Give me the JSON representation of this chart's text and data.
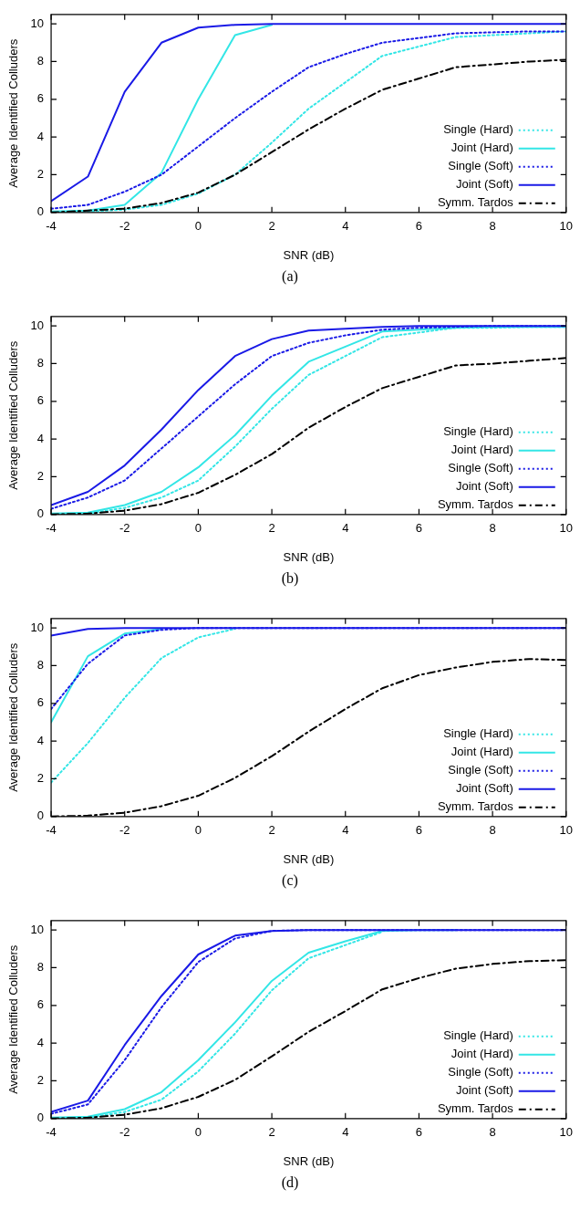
{
  "chart_data": [
    {
      "type": "line",
      "xlabel": "SNR (dB)",
      "ylabel": "Average Identified Colluders",
      "annotations": [
        "(a)"
      ],
      "x": [
        -4,
        -3,
        -2,
        -1,
        0,
        1,
        2,
        3,
        4,
        5,
        6,
        7,
        8,
        9,
        10
      ],
      "xlim": [
        -4,
        10
      ],
      "xticks": [
        -4,
        -2,
        0,
        2,
        4,
        6,
        8,
        10
      ],
      "ylim": [
        0,
        10.5
      ],
      "yticks": [
        0,
        2,
        4,
        6,
        8,
        10
      ],
      "legend": "bottom right",
      "series": [
        {
          "name": "Single (Hard)",
          "color": "#33e6e6",
          "line_style": "dotted",
          "values": [
            0,
            0.05,
            0.15,
            0.4,
            1.0,
            2.0,
            3.7,
            5.5,
            6.9,
            8.3,
            8.8,
            9.3,
            9.4,
            9.5,
            9.6
          ]
        },
        {
          "name": "Joint (Hard)",
          "color": "#33e6e6",
          "line_style": "solid",
          "values": [
            0.05,
            0.1,
            0.4,
            2.1,
            6.0,
            9.4,
            9.95,
            null,
            null,
            null,
            null,
            null,
            null,
            null,
            null
          ]
        },
        {
          "name": "Single (Soft)",
          "color": "#1a1ae6",
          "line_style": "dotted",
          "values": [
            0.2,
            0.4,
            1.1,
            2.0,
            3.5,
            5.0,
            6.4,
            7.7,
            8.4,
            9.0,
            9.25,
            9.5,
            9.55,
            9.6,
            9.6
          ]
        },
        {
          "name": "Joint (Soft)",
          "color": "#1a1ae6",
          "line_style": "solid",
          "values": [
            0.6,
            1.9,
            6.4,
            9.0,
            9.8,
            9.95,
            10,
            10,
            10,
            10,
            10,
            10,
            10,
            10,
            10
          ]
        },
        {
          "name": "Symm. Tardos",
          "color": "#000000",
          "line_style": "dashdot",
          "values": [
            0,
            0.1,
            0.2,
            0.5,
            1.05,
            2.0,
            3.2,
            4.4,
            5.5,
            6.5,
            7.1,
            7.7,
            7.85,
            8.0,
            8.1
          ]
        }
      ]
    },
    {
      "type": "line",
      "xlabel": "SNR (dB)",
      "ylabel": "Average Identified Colluders",
      "annotations": [
        "(b)"
      ],
      "x": [
        -4,
        -3,
        -2,
        -1,
        0,
        1,
        2,
        3,
        4,
        5,
        6,
        7,
        8,
        9,
        10
      ],
      "xlim": [
        -4,
        10
      ],
      "xticks": [
        -4,
        -2,
        0,
        2,
        4,
        6,
        8,
        10
      ],
      "ylim": [
        0,
        10.5
      ],
      "yticks": [
        0,
        2,
        4,
        6,
        8,
        10
      ],
      "legend": "bottom right",
      "series": [
        {
          "name": "Single (Hard)",
          "color": "#33e6e6",
          "line_style": "dotted",
          "values": [
            0,
            0.05,
            0.35,
            0.9,
            1.8,
            3.6,
            5.6,
            7.4,
            8.4,
            9.4,
            9.65,
            9.9,
            9.9,
            9.95,
            9.95
          ]
        },
        {
          "name": "Joint (Hard)",
          "color": "#33e6e6",
          "line_style": "solid",
          "values": [
            0.05,
            0.1,
            0.5,
            1.2,
            2.5,
            4.2,
            6.3,
            8.1,
            8.9,
            9.7,
            9.8,
            9.9,
            9.95,
            9.95,
            9.95
          ]
        },
        {
          "name": "Single (Soft)",
          "color": "#1a1ae6",
          "line_style": "dotted",
          "values": [
            0.3,
            0.9,
            1.8,
            3.5,
            5.2,
            6.9,
            8.4,
            9.1,
            9.5,
            9.8,
            9.9,
            9.95,
            10,
            10,
            10
          ]
        },
        {
          "name": "Joint (Soft)",
          "color": "#1a1ae6",
          "line_style": "solid",
          "values": [
            0.5,
            1.2,
            2.6,
            4.5,
            6.6,
            8.4,
            9.3,
            9.75,
            9.85,
            9.95,
            10,
            10,
            10,
            10,
            10
          ]
        },
        {
          "name": "Symm. Tardos",
          "color": "#000000",
          "line_style": "dashdot",
          "values": [
            0,
            0.05,
            0.2,
            0.55,
            1.15,
            2.1,
            3.2,
            4.6,
            5.7,
            6.7,
            7.3,
            7.9,
            8.0,
            8.15,
            8.3
          ]
        }
      ]
    },
    {
      "type": "line",
      "xlabel": "SNR (dB)",
      "ylabel": "Average Identified Colluders",
      "annotations": [
        "(c)"
      ],
      "x": [
        -4,
        -3,
        -2,
        -1,
        0,
        1,
        2,
        3,
        4,
        5,
        6,
        7,
        8,
        9,
        10
      ],
      "xlim": [
        -4,
        10
      ],
      "xticks": [
        -4,
        -2,
        0,
        2,
        4,
        6,
        8,
        10
      ],
      "ylim": [
        0,
        10.5
      ],
      "yticks": [
        0,
        2,
        4,
        6,
        8,
        10
      ],
      "legend": "bottom right",
      "series": [
        {
          "name": "Single (Hard)",
          "color": "#33e6e6",
          "line_style": "dotted",
          "values": [
            1.8,
            3.9,
            6.3,
            8.4,
            9.5,
            9.95,
            null,
            null,
            null,
            null,
            null,
            null,
            null,
            null,
            null
          ]
        },
        {
          "name": "Joint (Hard)",
          "color": "#33e6e6",
          "line_style": "solid",
          "values": [
            5.0,
            8.5,
            9.7,
            9.95,
            null,
            null,
            null,
            null,
            null,
            null,
            null,
            null,
            null,
            null,
            null
          ]
        },
        {
          "name": "Single (Soft)",
          "color": "#1a1ae6",
          "line_style": "dotted",
          "values": [
            5.7,
            8.1,
            9.6,
            9.9,
            10,
            10,
            10,
            10,
            10,
            10,
            10,
            10,
            10,
            10,
            10
          ]
        },
        {
          "name": "Joint (Soft)",
          "color": "#1a1ae6",
          "line_style": "solid",
          "values": [
            9.6,
            9.95,
            10,
            10,
            10,
            10,
            10,
            10,
            10,
            10,
            10,
            10,
            10,
            10,
            10
          ]
        },
        {
          "name": "Symm. Tardos",
          "color": "#000000",
          "line_style": "dashdot",
          "values": [
            0,
            0.05,
            0.2,
            0.55,
            1.1,
            2.05,
            3.2,
            4.5,
            5.7,
            6.8,
            7.5,
            7.9,
            8.2,
            8.35,
            8.3
          ]
        }
      ]
    },
    {
      "type": "line",
      "xlabel": "SNR (dB)",
      "ylabel": "Average Identified Colluders",
      "annotations": [
        "(d)"
      ],
      "x": [
        -4,
        -3,
        -2,
        -1,
        0,
        1,
        2,
        3,
        4,
        5,
        6,
        7,
        8,
        9,
        10
      ],
      "xlim": [
        -4,
        10
      ],
      "xticks": [
        -4,
        -2,
        0,
        2,
        4,
        6,
        8,
        10
      ],
      "ylim": [
        0,
        10.5
      ],
      "yticks": [
        0,
        2,
        4,
        6,
        8,
        10
      ],
      "legend": "bottom right",
      "series": [
        {
          "name": "Single (Hard)",
          "color": "#33e6e6",
          "line_style": "dotted",
          "values": [
            0,
            0.05,
            0.35,
            1.0,
            2.5,
            4.5,
            6.8,
            8.5,
            9.2,
            9.9,
            null,
            null,
            null,
            null,
            null
          ]
        },
        {
          "name": "Joint (Hard)",
          "color": "#33e6e6",
          "line_style": "solid",
          "values": [
            0.05,
            0.1,
            0.5,
            1.4,
            3.1,
            5.1,
            7.3,
            8.8,
            9.4,
            9.95,
            10,
            10,
            null,
            null,
            null
          ]
        },
        {
          "name": "Single (Soft)",
          "color": "#1a1ae6",
          "line_style": "dotted",
          "values": [
            0.25,
            0.75,
            3.1,
            5.9,
            8.3,
            9.55,
            9.95,
            10,
            10,
            10,
            10,
            10,
            10,
            10,
            10
          ]
        },
        {
          "name": "Joint (Soft)",
          "color": "#1a1ae6",
          "line_style": "solid",
          "values": [
            0.35,
            0.95,
            3.9,
            6.5,
            8.7,
            9.7,
            9.95,
            10,
            10,
            10,
            10,
            10,
            10,
            10,
            10
          ]
        },
        {
          "name": "Symm. Tardos",
          "color": "#000000",
          "line_style": "dashdot",
          "values": [
            0,
            0.05,
            0.2,
            0.55,
            1.15,
            2.05,
            3.3,
            4.6,
            5.7,
            6.85,
            7.45,
            7.95,
            8.2,
            8.35,
            8.4
          ]
        }
      ]
    }
  ]
}
